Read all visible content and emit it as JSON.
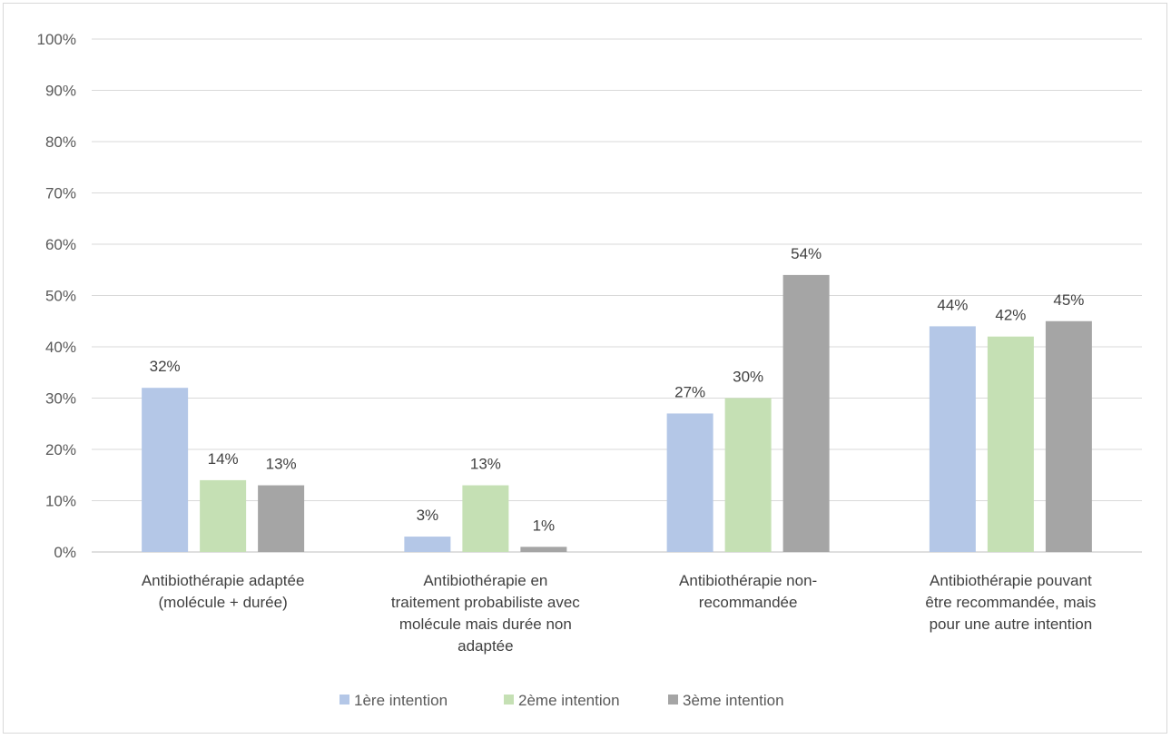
{
  "chart_data": {
    "type": "bar",
    "title": "",
    "xlabel": "",
    "ylabel": "",
    "ylim": [
      0,
      100
    ],
    "y_unit": "%",
    "y_ticks": [
      "0%",
      "10%",
      "20%",
      "30%",
      "40%",
      "50%",
      "60%",
      "70%",
      "80%",
      "90%",
      "100%"
    ],
    "grid": true,
    "legend_position": "bottom",
    "categories": [
      [
        "Antibiothérapie adaptée",
        "(molécule + durée)"
      ],
      [
        "Antibiothérapie  en",
        "traitement probabiliste avec",
        "molécule mais durée non",
        "adaptée"
      ],
      [
        "Antibiothérapie non-",
        "recommandée"
      ],
      [
        "Antibiothérapie pouvant",
        "être recommandée, mais",
        "pour une autre intention"
      ]
    ],
    "series": [
      {
        "name": "1ère intention",
        "color": "#b4c7e7",
        "values": [
          32,
          3,
          27,
          44
        ]
      },
      {
        "name": "2ème intention",
        "color": "#c5e0b4",
        "values": [
          14,
          13,
          30,
          42
        ]
      },
      {
        "name": "3ème intention",
        "color": "#a5a5a5",
        "values": [
          13,
          1,
          54,
          45
        ]
      }
    ]
  }
}
